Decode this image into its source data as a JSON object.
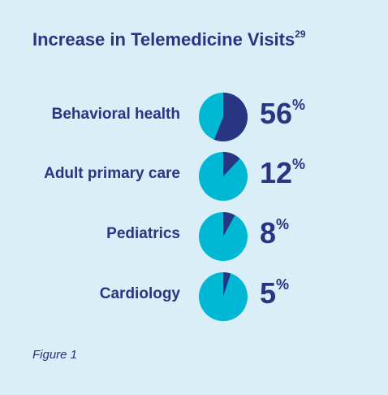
{
  "title": "Increase in Telemedicine Visits",
  "title_ref": "29",
  "caption": "Figure 1",
  "colors": {
    "background": "#d9eef6",
    "text": "#273583",
    "highlight": "#273583",
    "remainder": "#00b8d4"
  },
  "chart_data": {
    "type": "pie",
    "title": "Increase in Telemedicine Visits",
    "categories": [
      "Behavioral health",
      "Adult primary care",
      "Pediatrics",
      "Cardiology"
    ],
    "values": [
      56,
      12,
      8,
      5
    ],
    "unit": "%"
  },
  "rows": [
    {
      "label": "Behavioral health",
      "value": "56",
      "pct": "%"
    },
    {
      "label": "Adult primary care",
      "value": "12",
      "pct": "%"
    },
    {
      "label": "Pediatrics",
      "value": "8",
      "pct": "%"
    },
    {
      "label": "Cardiology",
      "value": "5",
      "pct": "%"
    }
  ]
}
